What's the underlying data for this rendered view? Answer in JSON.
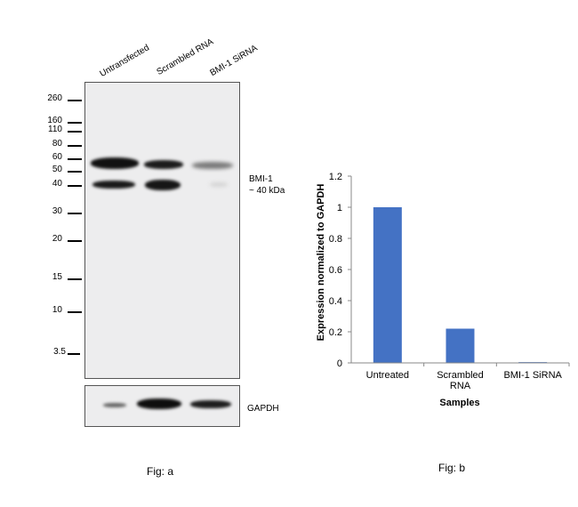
{
  "figure_a": {
    "lanes": [
      "Untransfected",
      "Scrambled RNA",
      "BMI-1 SiRNA"
    ],
    "mw_markers": [
      "260",
      "160",
      "110",
      "80",
      "60",
      "50",
      "40",
      "30",
      "20",
      "15",
      "10",
      "3.5"
    ],
    "target_label_line1": "BMI-1",
    "target_label_line2": "~ 40 kDa",
    "loading_control_label": "GAPDH",
    "caption": "Fig: a"
  },
  "figure_b": {
    "caption": "Fig: b"
  },
  "chart_data": {
    "type": "bar",
    "categories": [
      "Untreated",
      "Scrambled RNA",
      "BMI-1 SiRNA"
    ],
    "category_lines": [
      [
        "Untreated"
      ],
      [
        "Scrambled",
        "RNA"
      ],
      [
        "BMI-1 SiRNA"
      ]
    ],
    "values": [
      1.0,
      0.22,
      0.005
    ],
    "xlabel": "Samples",
    "ylabel": "Expression normalized to GAPDH",
    "ylim": [
      0,
      1.2
    ],
    "yticks": [
      "0",
      "0.2",
      "0.4",
      "0.6",
      "0.8",
      "1",
      "1.2"
    ],
    "bar_color": "#4472C4",
    "grid": false,
    "legend": "none"
  }
}
